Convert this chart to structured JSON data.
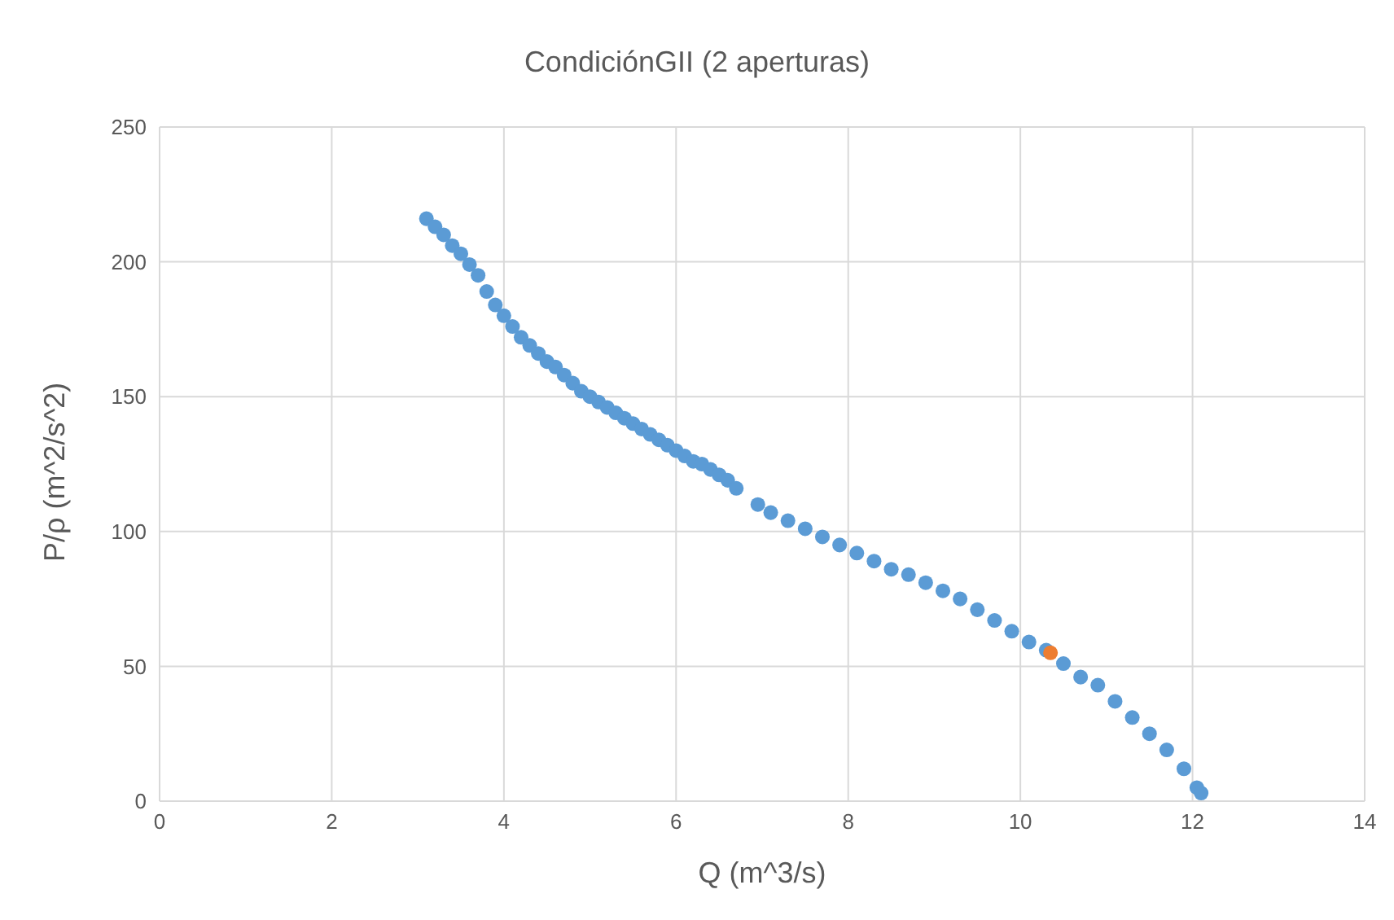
{
  "chart_data": {
    "type": "scatter",
    "title": "CondiciónGII (2 aperturas)",
    "xlabel": "Q (m^3/s)",
    "ylabel": "P/ρ (m^2/s^2)",
    "xlim": [
      0,
      14
    ],
    "xticks": [
      0,
      2,
      4,
      6,
      8,
      10,
      12,
      14
    ],
    "ylim": [
      0,
      250
    ],
    "yticks": [
      0,
      50,
      100,
      150,
      200,
      250
    ],
    "grid": true,
    "marker": "circle",
    "series": [
      {
        "color": "#5b9bd5",
        "x": [
          3.1,
          3.2,
          3.3,
          3.4,
          3.5,
          3.6,
          3.7,
          3.8,
          3.9,
          4.0,
          4.1,
          4.2,
          4.3,
          4.4,
          4.5,
          4.6,
          4.7,
          4.8,
          4.9,
          5.0,
          5.1,
          5.2,
          5.3,
          5.4,
          5.5,
          5.6,
          5.7,
          5.8,
          5.9,
          6.0,
          6.1,
          6.2,
          6.3,
          6.4,
          6.5,
          6.6,
          6.7,
          6.95,
          7.1,
          7.3,
          7.5,
          7.7,
          7.9,
          8.1,
          8.3,
          8.5,
          8.7,
          8.9,
          9.1,
          9.3,
          9.5,
          9.7,
          9.9,
          10.1,
          10.3,
          10.5,
          10.7,
          10.9,
          11.1,
          11.3,
          11.5,
          11.7,
          11.9,
          12.05,
          12.1
        ],
        "values": [
          216,
          213,
          210,
          206,
          203,
          199,
          195,
          189,
          184,
          180,
          176,
          172,
          169,
          166,
          163,
          161,
          158,
          155,
          152,
          150,
          148,
          146,
          144,
          142,
          140,
          138,
          136,
          134,
          132,
          130,
          128,
          126,
          125,
          123,
          121,
          119,
          116,
          110,
          107,
          104,
          101,
          98,
          95,
          92,
          89,
          86,
          84,
          81,
          78,
          75,
          71,
          67,
          63,
          59,
          56,
          51,
          46,
          43,
          37,
          31,
          25,
          19,
          12,
          5,
          3
        ]
      },
      {
        "color": "#ed7d31",
        "x": [
          10.35
        ],
        "values": [
          55
        ]
      }
    ]
  }
}
